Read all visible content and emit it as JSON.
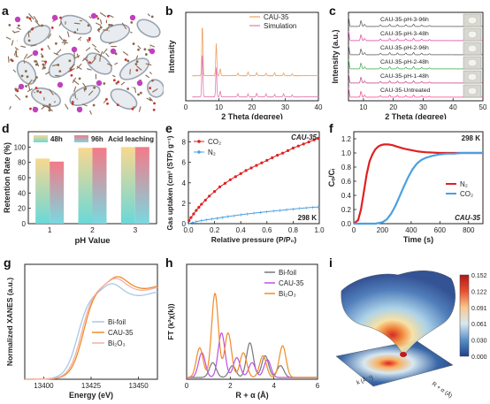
{
  "panel_letters": [
    "a",
    "b",
    "c",
    "d",
    "e",
    "f",
    "g",
    "h",
    "i"
  ],
  "chart_data": [
    {
      "panel": "b",
      "type": "line",
      "xlabel": "2 Theta (degree)",
      "ylabel": "Intensity",
      "xlim": [
        0,
        40
      ],
      "xticks": [
        0,
        10,
        20,
        30,
        40
      ],
      "series": [
        {
          "name": "CAU-35",
          "color": "#f0a060",
          "peaks": [
            [
              5.0,
              0.88
            ],
            [
              9.2,
              0.55
            ],
            [
              10.4,
              0.12
            ],
            [
              15.7,
              0.04
            ],
            [
              18.8,
              0.06
            ],
            [
              21.4,
              0.05
            ],
            [
              24.2,
              0.04
            ],
            [
              26.8,
              0.05
            ],
            [
              29.5,
              0.04
            ],
            [
              32.1,
              0.03
            ]
          ]
        },
        {
          "name": "Simulation",
          "color": "#e27ab4",
          "peaks": [
            [
              5.0,
              0.75
            ],
            [
              9.2,
              0.5
            ],
            [
              10.4,
              0.1
            ],
            [
              15.7,
              0.05
            ],
            [
              18.8,
              0.05
            ],
            [
              21.4,
              0.06
            ],
            [
              24.2,
              0.05
            ],
            [
              26.8,
              0.04
            ],
            [
              29.5,
              0.05
            ],
            [
              32.1,
              0.03
            ]
          ]
        }
      ],
      "legend": "top-right"
    },
    {
      "panel": "c",
      "type": "line",
      "xlabel": "2 Theta (degree)",
      "ylabel": "Intensity (a.u.)",
      "xlim": [
        5,
        50
      ],
      "xticks": [
        10,
        20,
        30,
        40,
        50
      ],
      "series": [
        {
          "name": "CAU-35-pH-3-96h",
          "color": "#555555"
        },
        {
          "name": "CAU-35-pH-3-48h",
          "color": "#e040a0"
        },
        {
          "name": "CAU-35-pH-2-96h",
          "color": "#555555"
        },
        {
          "name": "CAU-35-pH-2-48h",
          "color": "#3aa84a"
        },
        {
          "name": "CAU-35-pH-1-48h",
          "color": "#c04080"
        },
        {
          "name": "CAU-35-Untreated",
          "color": "#ff3a8a"
        }
      ],
      "peaks": [
        5.0,
        9.2,
        10.4,
        15.7,
        18.8,
        21.4,
        24.2,
        26.8,
        29.5,
        32.1
      ],
      "legend": "inside"
    },
    {
      "panel": "d",
      "type": "bar",
      "xlabel": "pH Value",
      "ylabel": "Retention Rate (%)",
      "categories": [
        "1",
        "2",
        "3"
      ],
      "series": [
        {
          "name": "48h",
          "values": [
            85,
            99,
            100
          ]
        },
        {
          "name": "96h",
          "values": [
            81,
            99,
            100
          ]
        }
      ],
      "ylim": [
        0,
        120
      ],
      "yticks": [
        0,
        20,
        40,
        60,
        80,
        100
      ],
      "annotation": "Acid leaching",
      "legend": "top"
    },
    {
      "panel": "e",
      "type": "scatter",
      "title": "CAU-35",
      "xlabel": "Relative pressure (P/P₀)",
      "ylabel": "Gas uptaken (cm³ (STP) g⁻¹)",
      "xlim": [
        0.0,
        1.0
      ],
      "ylim": [
        0,
        9
      ],
      "xticks": [
        0.0,
        0.2,
        0.4,
        0.6,
        0.8,
        1.0
      ],
      "yticks": [
        0,
        2,
        4,
        6,
        8
      ],
      "annotation": "298 K",
      "series": [
        {
          "name": "CO₂",
          "color": "#e02020",
          "x": [
            0.005,
            0.02,
            0.04,
            0.06,
            0.08,
            0.1,
            0.13,
            0.16,
            0.2,
            0.24,
            0.28,
            0.32,
            0.36,
            0.4,
            0.44,
            0.48,
            0.52,
            0.56,
            0.6,
            0.64,
            0.68,
            0.72,
            0.76,
            0.8,
            0.84,
            0.88,
            0.92,
            0.96,
            0.99
          ],
          "y": [
            0.3,
            0.6,
            0.95,
            1.3,
            1.6,
            1.9,
            2.3,
            2.7,
            3.15,
            3.6,
            3.95,
            4.3,
            4.6,
            4.9,
            5.2,
            5.45,
            5.7,
            5.95,
            6.2,
            6.45,
            6.7,
            6.9,
            7.15,
            7.4,
            7.6,
            7.8,
            8.0,
            8.2,
            8.35
          ]
        },
        {
          "name": "N₂",
          "color": "#4aa0e0",
          "x": [
            0.005,
            0.03,
            0.06,
            0.1,
            0.14,
            0.18,
            0.22,
            0.26,
            0.3,
            0.35,
            0.4,
            0.45,
            0.5,
            0.55,
            0.6,
            0.65,
            0.7,
            0.75,
            0.8,
            0.85,
            0.9,
            0.95,
            0.99
          ],
          "y": [
            0.02,
            0.1,
            0.2,
            0.3,
            0.38,
            0.46,
            0.54,
            0.62,
            0.7,
            0.78,
            0.87,
            0.95,
            1.03,
            1.1,
            1.17,
            1.24,
            1.3,
            1.37,
            1.43,
            1.5,
            1.55,
            1.6,
            1.63
          ]
        }
      ],
      "legend": "top-left"
    },
    {
      "panel": "f",
      "type": "line",
      "xlabel": "Time (s)",
      "ylabel": "Cₒ/Cᵢ",
      "xlim": [
        0,
        900
      ],
      "ylim": [
        0,
        1.3
      ],
      "xticks": [
        0,
        200,
        400,
        600,
        800
      ],
      "yticks": [
        0.0,
        0.2,
        0.4,
        0.6,
        0.8,
        1.0,
        1.2
      ],
      "annotation_top": "298 K",
      "annotation_bottom": "CAU-35",
      "series": [
        {
          "name": "N₂",
          "color": "#e02020",
          "x": [
            0,
            30,
            50,
            70,
            90,
            110,
            130,
            150,
            170,
            190,
            210,
            240,
            270,
            300,
            350,
            400,
            450,
            500,
            600,
            700,
            800,
            900
          ],
          "y": [
            0.0,
            0.05,
            0.2,
            0.45,
            0.7,
            0.88,
            0.98,
            1.05,
            1.09,
            1.11,
            1.12,
            1.12,
            1.11,
            1.09,
            1.06,
            1.04,
            1.02,
            1.01,
            1.0,
            1.0,
            1.0,
            1.0
          ]
        },
        {
          "name": "CO₂",
          "color": "#4aa0e0",
          "x": [
            0,
            100,
            150,
            200,
            230,
            260,
            290,
            320,
            350,
            380,
            410,
            440,
            470,
            500,
            550,
            600,
            650,
            700,
            750,
            800,
            900
          ],
          "y": [
            0.0,
            0.0,
            0.0,
            0.02,
            0.06,
            0.14,
            0.25,
            0.39,
            0.53,
            0.66,
            0.77,
            0.85,
            0.9,
            0.93,
            0.96,
            0.98,
            0.99,
            0.99,
            1.0,
            1.0,
            1.0
          ]
        }
      ],
      "legend": "center-right"
    },
    {
      "panel": "g",
      "type": "line",
      "xlabel": "Energy (eV)",
      "ylabel": "Normalized XANES (a.u.)",
      "xlim": [
        13390,
        13460
      ],
      "ylim": [
        0,
        1.2
      ],
      "xticks": [
        13400,
        13425,
        13450
      ],
      "series": [
        {
          "name": "Bi-foil",
          "color": "#a8c8e8"
        },
        {
          "name": "CAU-35",
          "color": "#f08a28"
        },
        {
          "name": "Bi₂O₃",
          "color": "#f4b0a0"
        }
      ],
      "legend": "bottom-right"
    },
    {
      "panel": "h",
      "type": "line",
      "xlabel": "R + α (Å)",
      "ylabel": "FT (k²χ(k))",
      "xlim": [
        0,
        6
      ],
      "xticks": [
        0,
        2,
        4,
        6
      ],
      "series": [
        {
          "name": "Bi-foil",
          "color": "#777777"
        },
        {
          "name": "CAU-35",
          "color": "#c050e0"
        },
        {
          "name": "Bi₂O₃",
          "color": "#f08a28"
        }
      ],
      "legend": "top-right"
    },
    {
      "panel": "i",
      "type": "heatmap",
      "colorbar_ticks": [
        "0.152",
        "0.122",
        "0.091",
        "0.061",
        "0.030",
        "0.000"
      ],
      "axis_labels": [
        "k (Å⁻¹)",
        "R + α (Å)"
      ]
    }
  ]
}
